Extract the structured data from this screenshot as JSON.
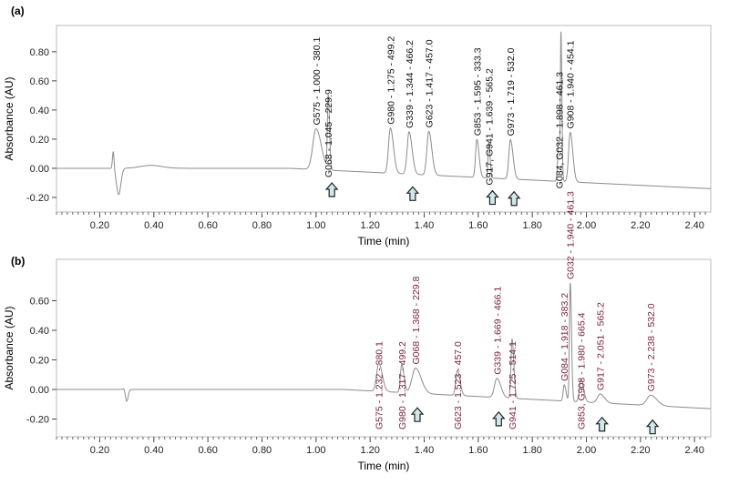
{
  "chart_data": [
    {
      "panel_label": "(a)",
      "type": "line",
      "xlabel": "Time (min)",
      "ylabel": "Absorbance (AU)",
      "xlim": [
        0.04,
        2.46
      ],
      "ylim": [
        -0.3,
        0.98
      ],
      "xticks": [
        "0.20",
        "0.40",
        "0.60",
        "0.80",
        "1.00",
        "1.20",
        "1.40",
        "1.60",
        "1.80",
        "2.00",
        "2.20",
        "2.40"
      ],
      "yticks": [
        "-0.20",
        "0.00",
        "0.20",
        "0.40",
        "0.60",
        "0.80"
      ],
      "label_color": "#111111",
      "trace_color": "#8c8c8c",
      "baseline": [
        [
          0.04,
          0.0
        ],
        [
          0.9,
          0.0
        ],
        [
          2.46,
          -0.14
        ]
      ],
      "disturbance": {
        "time": 0.25
      },
      "peaks": [
        {
          "rt": 1.0,
          "height": 0.28,
          "width": 0.012,
          "label": "G575 - 1.000 - 380.1"
        },
        {
          "rt": 1.045,
          "height": 0.5,
          "width": 0.003,
          "label": "G068 - 1.045 - 229.9",
          "below": true,
          "arrow": true
        },
        {
          "rt": 1.275,
          "height": 0.31,
          "width": 0.007,
          "label": "G980 - 1.275 - 499.2"
        },
        {
          "rt": 1.344,
          "height": 0.29,
          "width": 0.007,
          "label": "G339 - 1.344 - 466.2",
          "arrow": true
        },
        {
          "rt": 1.417,
          "height": 0.3,
          "width": 0.007,
          "label": "G623 - 1.417 - 457.0"
        },
        {
          "rt": 1.595,
          "height": 0.26,
          "width": 0.005,
          "label": "G853 - 1.595 - 333.3"
        },
        {
          "rt": 1.639,
          "height": 0.24,
          "width": 0.003,
          "label": "G917, G941 - 1.639 - 565.2",
          "below": true,
          "arrow": true
        },
        {
          "rt": 1.719,
          "height": 0.27,
          "width": 0.006,
          "label": "G973 - 1.719 - 532.0",
          "arrow": true
        },
        {
          "rt": 1.898,
          "height": 0.28,
          "width": 0.004,
          "label": "G084, G032 - 1.898 - 461.3",
          "below": true
        },
        {
          "rt": 1.906,
          "height": 0.9,
          "width": 0.002,
          "label": ""
        },
        {
          "rt": 1.94,
          "height": 0.34,
          "width": 0.006,
          "label": "G908 - 1.940 - 454.1"
        }
      ]
    },
    {
      "panel_label": "(b)",
      "type": "line",
      "xlabel": "Time (min)",
      "ylabel": "Absorbance (AU)",
      "xlim": [
        0.04,
        2.46
      ],
      "ylim": [
        -0.32,
        0.88
      ],
      "xticks": [
        "0.20",
        "0.40",
        "0.60",
        "0.80",
        "1.00",
        "1.20",
        "1.40",
        "1.60",
        "1.80",
        "2.00",
        "2.20",
        "2.40"
      ],
      "yticks": [
        "-0.20",
        "0.00",
        "0.20",
        "0.40",
        "0.60"
      ],
      "label_color": "#7a1f3d",
      "trace_color": "#8c8c8c",
      "baseline": [
        [
          0.04,
          0.0
        ],
        [
          1.1,
          0.0
        ],
        [
          2.46,
          -0.13
        ]
      ],
      "disturbance": {
        "time": 0.3
      },
      "peaks": [
        {
          "rt": 1.232,
          "height": 0.19,
          "width": 0.008,
          "label": "G575 - 1.232 - 380.1",
          "below": true
        },
        {
          "rt": 1.317,
          "height": 0.19,
          "width": 0.005,
          "label": "G980 - 1.317 - 499.2",
          "below": true
        },
        {
          "rt": 1.368,
          "height": 0.17,
          "width": 0.013,
          "label": "G068 - 1.368 - 229.8",
          "arrow": true
        },
        {
          "rt": 1.523,
          "height": 0.17,
          "width": 0.006,
          "label": "G623 - 1.523 - 457.0",
          "below": true
        },
        {
          "rt": 1.669,
          "height": 0.13,
          "width": 0.009,
          "label": "G339 - 1.669 - 466.1",
          "arrow": true
        },
        {
          "rt": 1.725,
          "height": 0.4,
          "width": 0.004,
          "label": "G941 - 1.725 - 514.1",
          "below": true
        },
        {
          "rt": 1.918,
          "height": 0.11,
          "width": 0.004,
          "label": "G084 - 1.918 - 383.2"
        },
        {
          "rt": 1.94,
          "height": 0.8,
          "width": 0.003,
          "label": "G032 - 1.940 - 461.3"
        },
        {
          "rt": 1.98,
          "height": 0.15,
          "width": 0.006,
          "label": "G853, G908 - 1.980 - 665.4",
          "below": true
        },
        {
          "rt": 2.051,
          "height": 0.06,
          "width": 0.01,
          "label": "G917 - 2.051 - 565.2",
          "arrow": true
        },
        {
          "rt": 2.238,
          "height": 0.07,
          "width": 0.014,
          "label": "G973 - 2.238 - 532.0",
          "arrow": true
        }
      ]
    }
  ]
}
